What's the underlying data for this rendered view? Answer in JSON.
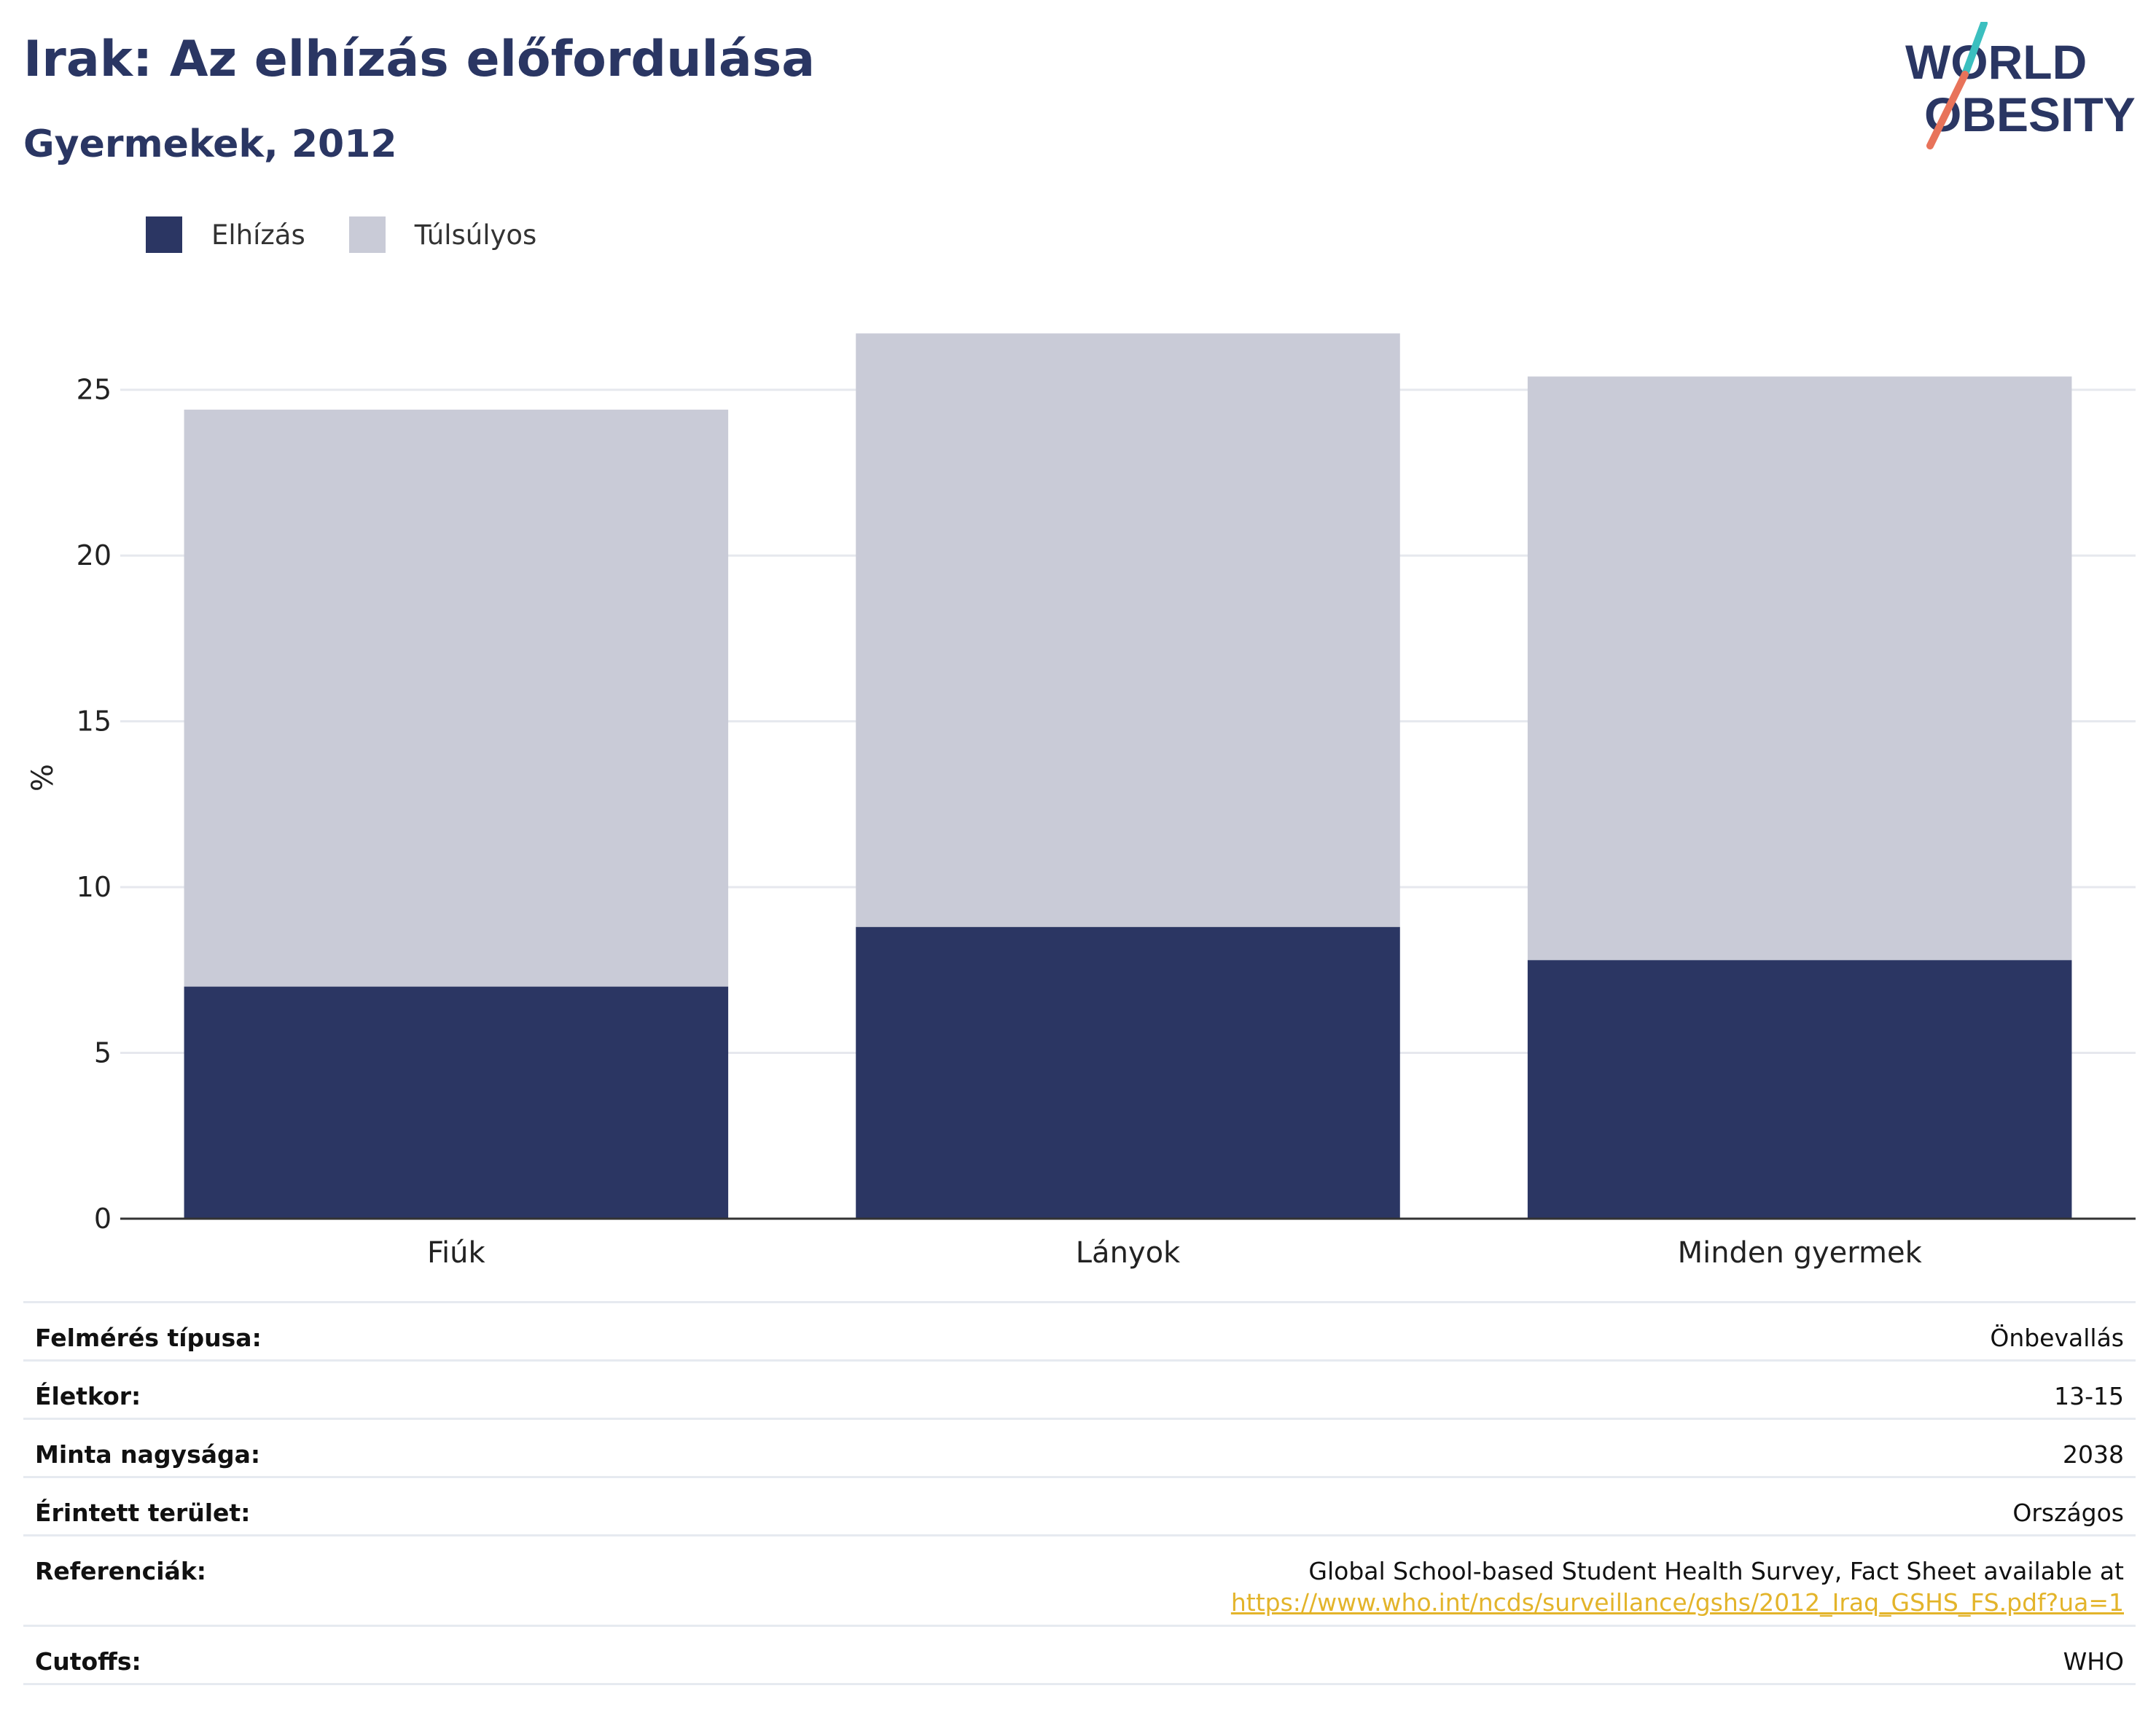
{
  "header": {
    "title": "Irak: Az elhízás előfordulása",
    "subtitle": "Gyermekek, 2012"
  },
  "logo": {
    "line1": "WORLD",
    "line2": "OBESITY",
    "color": "#2a3663",
    "accent_colors": [
      "#3bbfbf",
      "#e8735a"
    ]
  },
  "legend": [
    {
      "label": "Elhízás",
      "color": "#2b3663"
    },
    {
      "label": "Túlsúlyos",
      "color": "#c9cbd7"
    }
  ],
  "chart_data": {
    "type": "bar",
    "stacked": true,
    "categories": [
      "Fiúk",
      "Lányok",
      "Minden gyermek"
    ],
    "series": [
      {
        "name": "Elhízás",
        "values": [
          7.0,
          8.8,
          7.8
        ],
        "color": "#2b3663"
      },
      {
        "name": "Túlsúlyos",
        "values": [
          17.4,
          17.9,
          17.6
        ],
        "color": "#c9cbd7"
      }
    ],
    "ylabel": "%",
    "ylim": [
      0,
      27.5
    ],
    "yticks": [
      0,
      5,
      10,
      15,
      20,
      25
    ],
    "grid": true,
    "legend_position": "top-left"
  },
  "meta": {
    "survey_type": {
      "label": "Felmérés típusa:",
      "value": "Önbevallás"
    },
    "age": {
      "label": "Életkor:",
      "value": "13-15"
    },
    "sample_size": {
      "label": "Minta nagysága:",
      "value": "2038"
    },
    "area": {
      "label": "Érintett terület:",
      "value": "Országos"
    },
    "references": {
      "label": "Referenciák:",
      "value": "Global School-based Student Health Survey, Fact Sheet available at",
      "link": "https://www.who.int/ncds/surveillance/gshs/2012_Iraq_GSHS_FS.pdf?ua=1"
    },
    "cutoffs": {
      "label": "Cutoffs:",
      "value": "WHO"
    }
  }
}
